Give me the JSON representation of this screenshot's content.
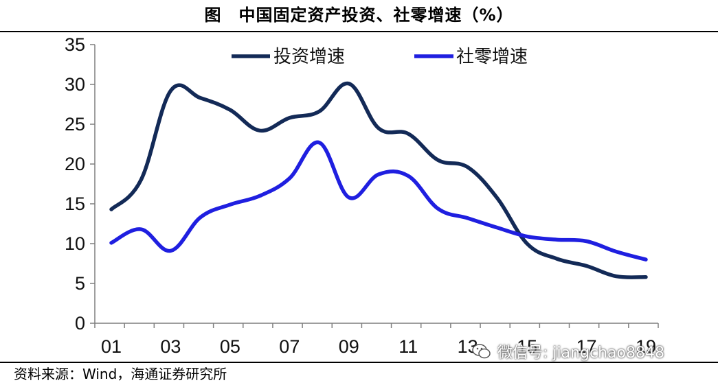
{
  "page": {
    "title": "图　中国固定资产投资、社零增速（%）",
    "source": "资料来源：Wind，海通证券研究所",
    "watermark": "微信号: jiangchao8848"
  },
  "chart_data": {
    "type": "line",
    "title": "",
    "xlabel": "",
    "ylabel": "",
    "x": [
      "01",
      "02",
      "03",
      "04",
      "05",
      "06",
      "07",
      "08",
      "09",
      "10",
      "11",
      "12",
      "13",
      "14",
      "15",
      "16",
      "17",
      "18",
      "19"
    ],
    "xtick_labels": [
      "01",
      "03",
      "05",
      "07",
      "09",
      "11",
      "13",
      "15",
      "17",
      "19"
    ],
    "ylim": [
      0,
      35
    ],
    "yticks": [
      0,
      5,
      10,
      15,
      20,
      25,
      30,
      35
    ],
    "legend_position": "top-center",
    "grid": false,
    "series": [
      {
        "name": "投资增速",
        "color": "#132a57",
        "values": [
          14.3,
          18.0,
          29.2,
          28.3,
          26.8,
          24.2,
          25.8,
          26.6,
          30.1,
          24.5,
          23.8,
          20.5,
          19.6,
          15.7,
          10.0,
          8.1,
          7.2,
          5.9,
          5.8
        ]
      },
      {
        "name": "社零增速",
        "color": "#1f1fe0",
        "values": [
          10.1,
          11.8,
          9.1,
          13.3,
          14.9,
          16.0,
          18.2,
          22.7,
          15.8,
          18.7,
          18.5,
          14.4,
          13.2,
          12.0,
          10.9,
          10.5,
          10.3,
          9.0,
          8.0
        ]
      }
    ]
  }
}
